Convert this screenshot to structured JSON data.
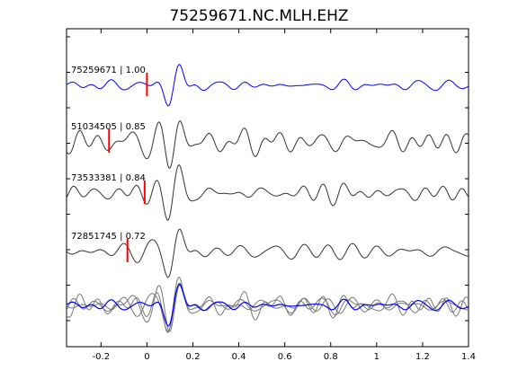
{
  "chart_data": {
    "type": "line",
    "title": "75259671.NC.MLH.EHZ",
    "xlim": [
      -0.35,
      1.4
    ],
    "x_ticks": [
      "-0.2",
      "0",
      "0.2",
      "0.4",
      "0.6",
      "0.8",
      "1",
      "1.2",
      "1.4"
    ],
    "x_tick_values": [
      -0.2,
      0,
      0.2,
      0.4,
      0.6,
      0.8,
      1.0,
      1.2,
      1.4
    ],
    "grid": false,
    "colors": {
      "primary": "#0000ff",
      "trace": "#333333",
      "stack": "#777777",
      "marker": "#ff0000",
      "axis": "#000000"
    },
    "traces": [
      {
        "label": "75259671 | 1.00",
        "color": "#0000ff",
        "pick_time": 0.0,
        "noise": 0.18,
        "seed": 11,
        "amp": 1.0
      },
      {
        "label": "51034505 | 0.85",
        "color": "#333333",
        "pick_time": -0.165,
        "noise": 0.55,
        "seed": 23,
        "amp": 1.0
      },
      {
        "label": "73533381 | 0.84",
        "color": "#333333",
        "pick_time": -0.01,
        "noise": 0.38,
        "seed": 37,
        "amp": 1.0
      },
      {
        "label": "72851745 | 0.72",
        "color": "#333333",
        "pick_time": -0.085,
        "noise": 0.33,
        "seed": 53,
        "amp": 1.0
      }
    ]
  }
}
